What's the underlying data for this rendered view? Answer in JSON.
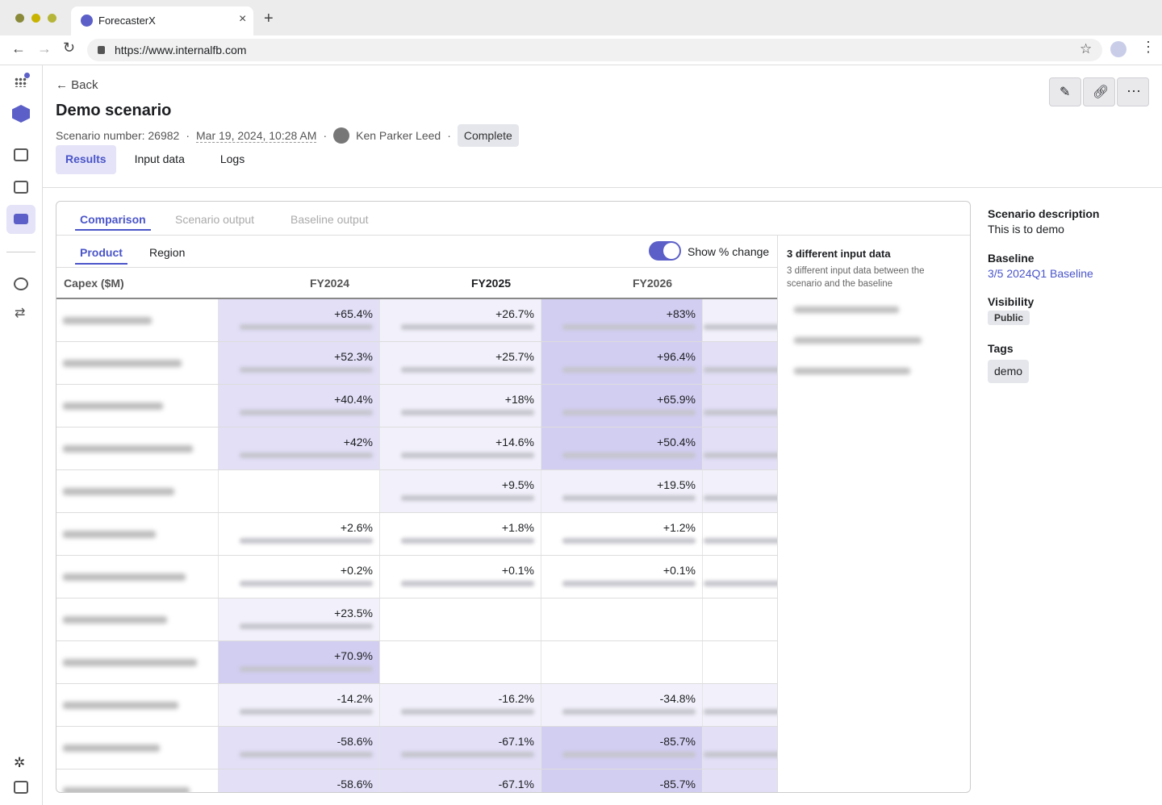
{
  "browser": {
    "tab_title": "ForecasterX",
    "url": "https://www.internalfb.com"
  },
  "header": {
    "back": "Back",
    "title": "Demo scenario",
    "scenario_number": "Scenario number: 26982",
    "date": "Mar 19, 2024, 10:28 AM",
    "author": "Ken Parker Leed",
    "status": "Complete"
  },
  "tabs": [
    "Results",
    "Input data",
    "Logs"
  ],
  "subtabs": [
    "Comparison",
    "Scenario output",
    "Baseline output"
  ],
  "group_tabs": [
    "Product",
    "Region"
  ],
  "toggle_label": "Show % change",
  "table": {
    "header": [
      "Capex ($M)",
      "FY2024",
      "FY2025",
      "FY2026"
    ],
    "rows": [
      [
        "+65.4%",
        "+26.7%",
        "+83%"
      ],
      [
        "+52.3%",
        "+25.7%",
        "+96.4%"
      ],
      [
        "+40.4%",
        "+18%",
        "+65.9%"
      ],
      [
        "+42%",
        "+14.6%",
        "+50.4%"
      ],
      [
        null,
        "+9.5%",
        "+19.5%"
      ],
      [
        "+2.6%",
        "+1.8%",
        "+1.2%"
      ],
      [
        "+0.2%",
        "+0.1%",
        "+0.1%"
      ],
      [
        "+23.5%",
        null,
        null
      ],
      [
        "+70.9%",
        null,
        null
      ],
      [
        "-14.2%",
        "-16.2%",
        "-34.8%"
      ],
      [
        "-58.6%",
        "-67.1%",
        "-85.7%"
      ],
      [
        "-58.6%",
        "-67.1%",
        "-85.7%"
      ]
    ]
  },
  "input_panel": {
    "title": "3 different input data",
    "description": "3 different input data between the scenario and the baseline"
  },
  "details": {
    "description_label": "Scenario description",
    "description": "This is to demo",
    "baseline_label": "Baseline",
    "baseline": "3/5 2024Q1 Baseline",
    "visibility_label": "Visibility",
    "visibility": "Public",
    "tags_label": "Tags",
    "tag": "demo"
  }
}
